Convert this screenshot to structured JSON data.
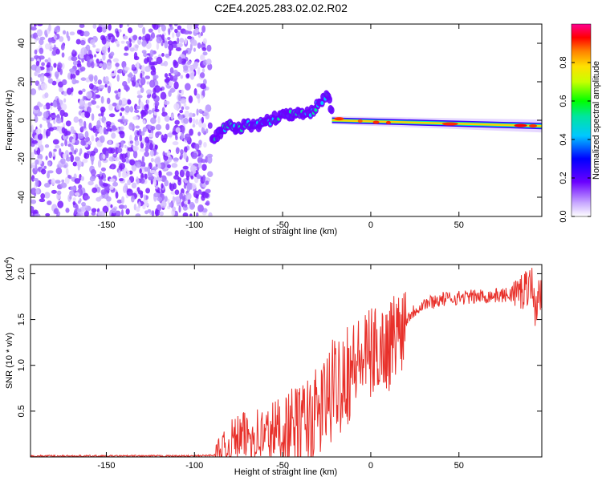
{
  "title": "C2E4.2025.283.02.02.R02",
  "colors": {
    "snr_line": "#e8302a",
    "noise": "#b388ff",
    "axis": "#000000"
  },
  "chart_data": [
    {
      "type": "heatmap",
      "xlabel": "Height of straight line (km)",
      "ylabel": "Frequency (Hz)",
      "xlim": [
        -193,
        97
      ],
      "ylim": [
        -50,
        50
      ],
      "xticks": [
        -150,
        -100,
        -50,
        0,
        50
      ],
      "yticks": [
        -40,
        -20,
        0,
        20,
        40
      ],
      "xtick_labels": [
        "-150",
        "-100",
        "-50",
        "0",
        "50"
      ],
      "ytick_labels": [
        "-40",
        "-20",
        "0",
        "20",
        "40"
      ],
      "colorbar": {
        "label": "Normalized spectral amplitude",
        "range": [
          0,
          1
        ],
        "ticks": [
          0.0,
          0.2,
          0.4,
          0.6,
          0.8
        ],
        "tick_labels": [
          "0.0",
          "0.2",
          "0.4",
          "0.6",
          "0.8"
        ]
      },
      "noise_region_x": [
        -193,
        -91
      ],
      "signal_track": [
        {
          "x": -90,
          "f": -10
        },
        {
          "x": -85,
          "f": -6
        },
        {
          "x": -80,
          "f": -3
        },
        {
          "x": -75,
          "f": -4
        },
        {
          "x": -70,
          "f": -2
        },
        {
          "x": -65,
          "f": -3
        },
        {
          "x": -60,
          "f": -1
        },
        {
          "x": -55,
          "f": 1
        },
        {
          "x": -50,
          "f": 2
        },
        {
          "x": -45,
          "f": 3
        },
        {
          "x": -40,
          "f": 4
        },
        {
          "x": -35,
          "f": 3
        },
        {
          "x": -30,
          "f": 8
        },
        {
          "x": -25,
          "f": 13
        },
        {
          "x": -20,
          "f": 1
        },
        {
          "x": 0,
          "f": -1
        },
        {
          "x": 50,
          "f": -2
        },
        {
          "x": 97,
          "f": -3
        }
      ]
    },
    {
      "type": "line",
      "xlabel": "Height of straight line (km)",
      "ylabel": "SNR (10 * v/v)",
      "scale_label": "(x10",
      "scale_exp": "4",
      "scale_close": ")",
      "xlim": [
        -193,
        97
      ],
      "ylim": [
        0,
        2.1
      ],
      "xticks": [
        -150,
        -100,
        -50,
        0,
        50
      ],
      "yticks": [
        0.5,
        1.0,
        1.5,
        2.0
      ],
      "xtick_labels": [
        "-150",
        "-100",
        "-50",
        "0",
        "50"
      ],
      "ytick_labels": [
        "0.5",
        "1.0",
        "1.5",
        "2.0"
      ],
      "series": [
        {
          "name": "SNR",
          "x": [
            -193,
            -150,
            -100,
            -88,
            -82,
            -78,
            -72,
            -66,
            -60,
            -54,
            -48,
            -42,
            -36,
            -30,
            -26,
            -22,
            -18,
            -14,
            -10,
            -6,
            -2,
            2,
            6,
            10,
            14,
            18,
            22,
            26,
            30,
            40,
            50,
            60,
            70,
            80,
            85,
            88,
            91,
            93,
            95,
            97
          ],
          "y": [
            0.01,
            0.01,
            0.01,
            0.02,
            0.08,
            0.2,
            0.22,
            0.25,
            0.22,
            0.28,
            0.3,
            0.33,
            0.4,
            0.45,
            0.6,
            0.7,
            0.85,
            0.95,
            1.0,
            1.05,
            1.1,
            1.15,
            1.2,
            1.2,
            1.35,
            1.45,
            1.55,
            1.62,
            1.67,
            1.72,
            1.74,
            1.75,
            1.76,
            1.77,
            1.8,
            1.85,
            1.95,
            1.6,
            1.75,
            1.7
          ]
        }
      ]
    }
  ]
}
